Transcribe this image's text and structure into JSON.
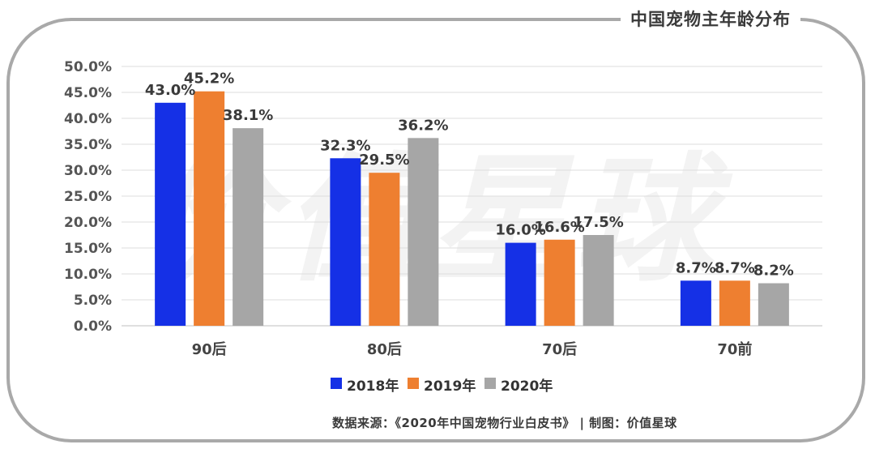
{
  "title": "中国宠物主年龄分布",
  "watermark": "价值星球",
  "source": "数据来源：《2020年中国宠物行业白皮书》  |  制图：价值星球",
  "colors": {
    "2018年": "#1530e6",
    "2019年": "#ee7f30",
    "2020年": "#a6a6a6"
  },
  "chart_data": {
    "type": "bar",
    "title": "中国宠物主年龄分布",
    "categories": [
      "90后",
      "80后",
      "70后",
      "70前"
    ],
    "series": [
      {
        "name": "2018年",
        "values": [
          43.0,
          32.3,
          16.0,
          8.7
        ],
        "labels": [
          "43.0%",
          "32.3%",
          "16.0%",
          "8.7%"
        ]
      },
      {
        "name": "2019年",
        "values": [
          45.2,
          29.5,
          16.6,
          8.7
        ],
        "labels": [
          "45.2%",
          "29.5%",
          "16.6%",
          "8.7%"
        ]
      },
      {
        "name": "2020年",
        "values": [
          38.1,
          36.2,
          17.5,
          8.2
        ],
        "labels": [
          "38.1%",
          "36.2%",
          "17.5%",
          "8.2%"
        ]
      }
    ],
    "yticks": [
      "0.0%",
      "5.0%",
      "10.0%",
      "15.0%",
      "20.0%",
      "25.0%",
      "30.0%",
      "35.0%",
      "40.0%",
      "45.0%",
      "50.0%"
    ],
    "ylim": [
      0,
      50
    ],
    "ytick_step": 5,
    "grid": true,
    "legend_position": "bottom"
  }
}
